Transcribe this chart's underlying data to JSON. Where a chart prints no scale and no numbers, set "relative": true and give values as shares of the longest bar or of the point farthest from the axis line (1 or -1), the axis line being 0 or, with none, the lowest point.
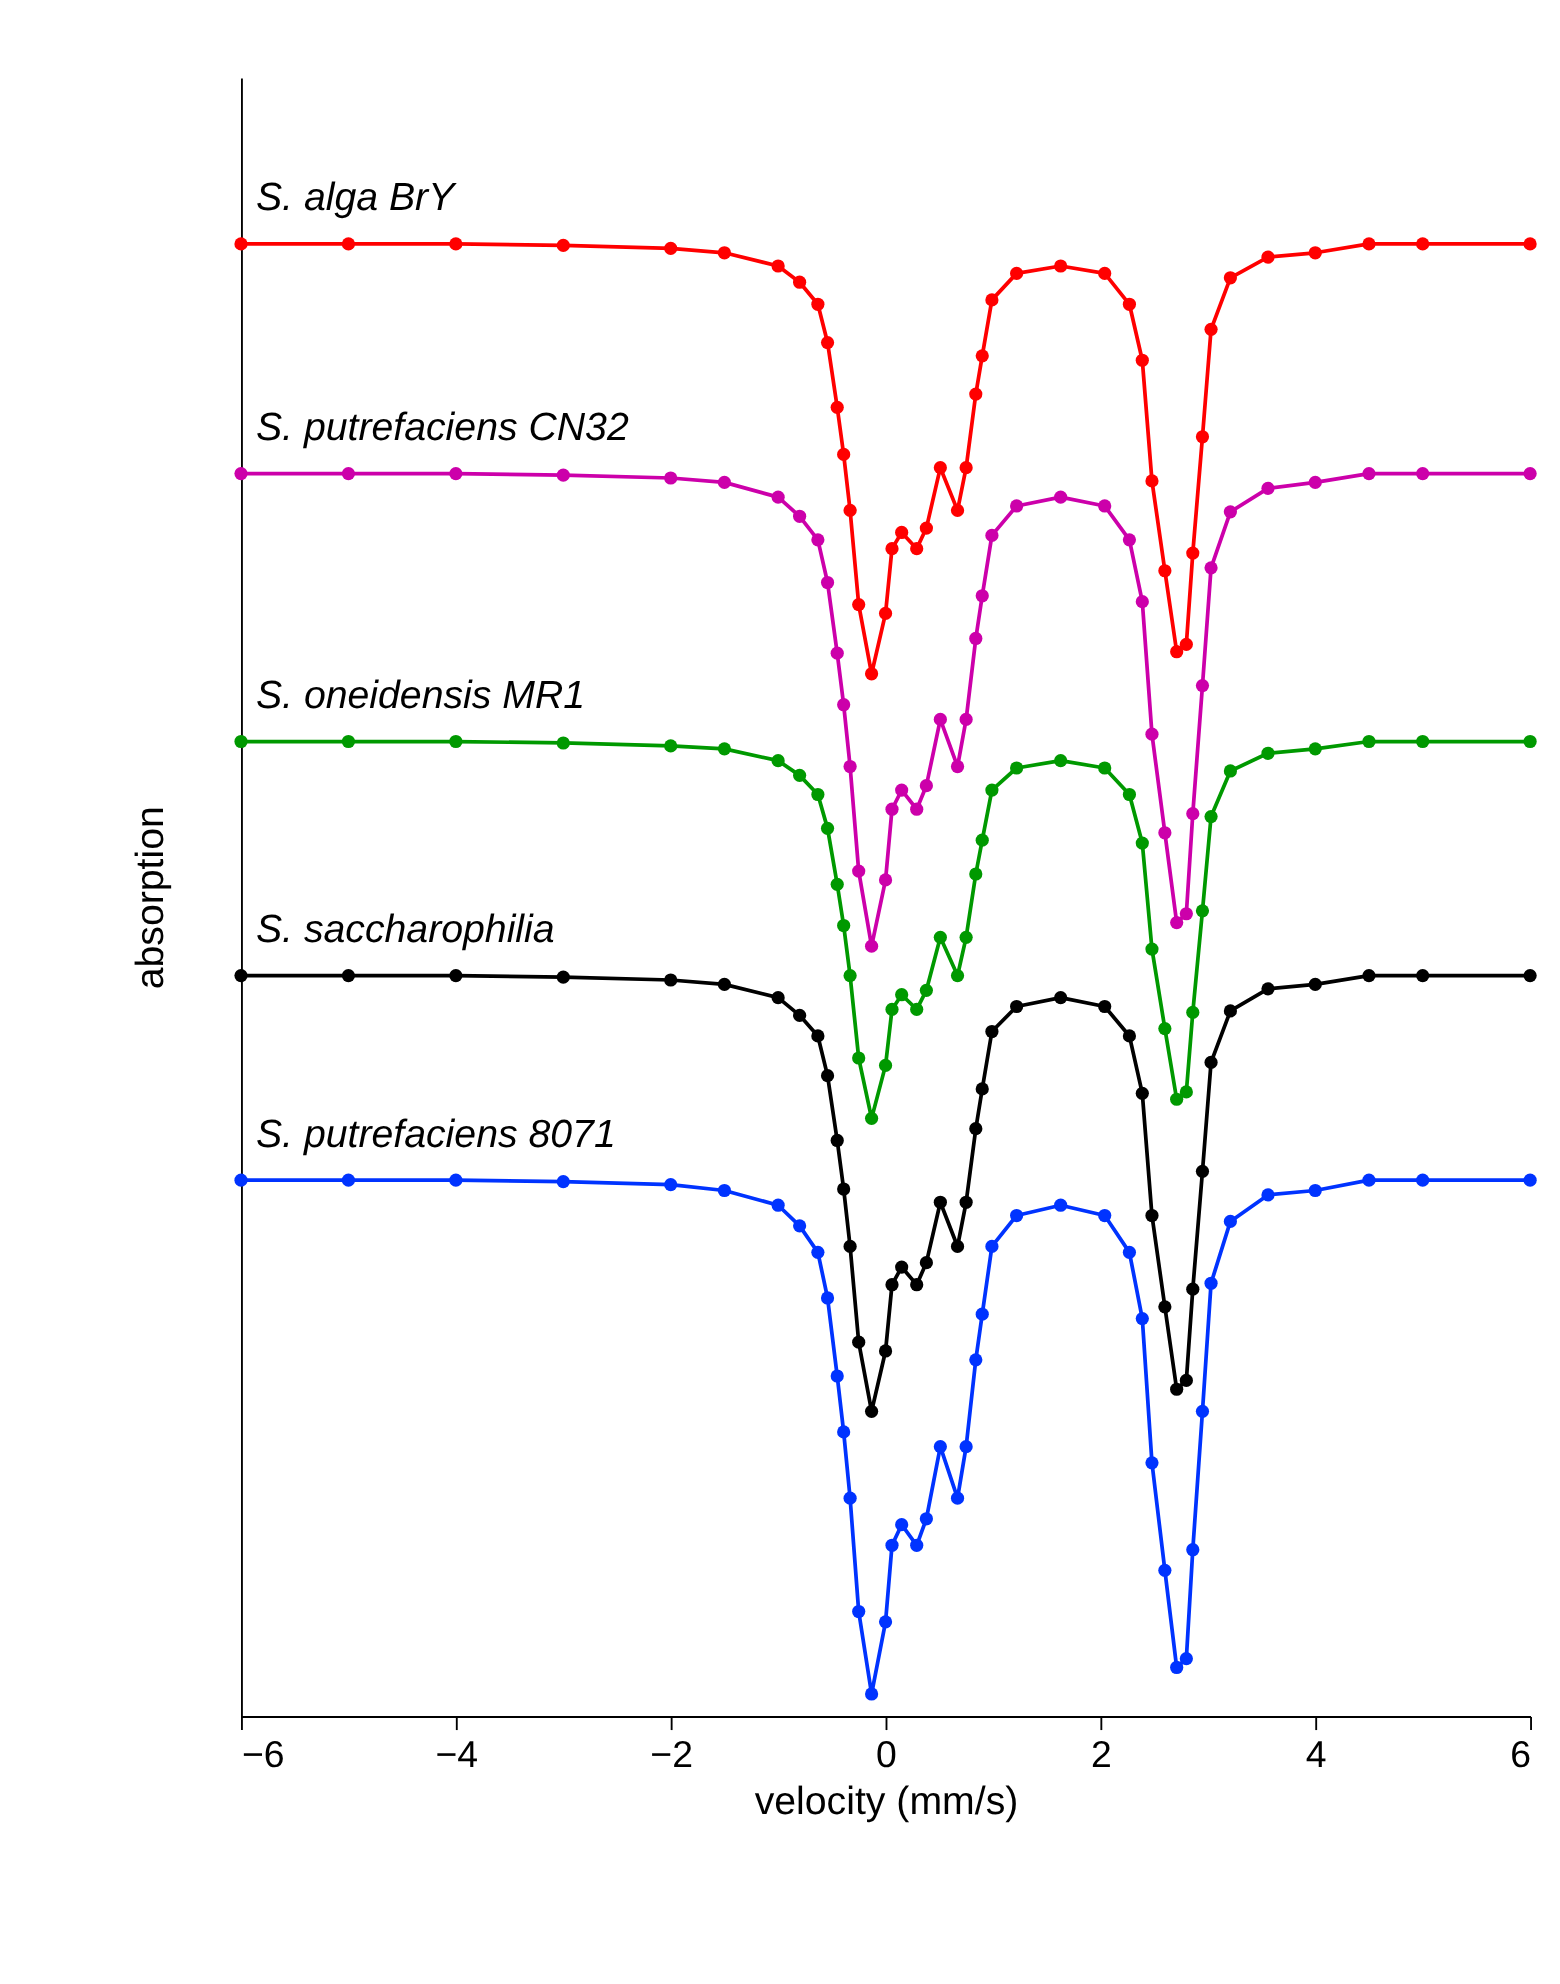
{
  "chart_data": {
    "type": "line",
    "relative": true,
    "xlabel": "velocity (mm/s)",
    "ylabel": "absorption",
    "xlim": [
      -6,
      6
    ],
    "xticks": [
      -6,
      -4,
      -2,
      0,
      2,
      4,
      6
    ],
    "grid": false,
    "legend": false,
    "marker": "circle",
    "line_style": "solid",
    "x": [
      -6,
      -5,
      -4,
      -3,
      -2,
      -1.5,
      -1,
      -0.8,
      -0.63,
      -0.54,
      -0.45,
      -0.39,
      -0.33,
      -0.25,
      -0.13,
      0,
      0.06,
      0.15,
      0.29,
      0.38,
      0.51,
      0.67,
      0.75,
      0.84,
      0.9,
      0.99,
      1.22,
      1.63,
      2.04,
      2.27,
      2.39,
      2.48,
      2.6,
      2.71,
      2.8,
      2.86,
      2.95,
      3.03,
      3.21,
      3.56,
      4,
      4.5,
      5,
      6
    ],
    "series": [
      {
        "name": "S. alga BrY",
        "color": "#ff0000",
        "values": [
          1.0,
          1.0,
          1.0,
          0.999,
          0.997,
          0.994,
          0.985,
          0.974,
          0.959,
          0.933,
          0.889,
          0.857,
          0.819,
          0.755,
          0.708,
          0.749,
          0.793,
          0.804,
          0.793,
          0.807,
          0.848,
          0.819,
          0.848,
          0.898,
          0.924,
          0.962,
          0.98,
          0.985,
          0.98,
          0.959,
          0.921,
          0.839,
          0.778,
          0.723,
          0.728,
          0.79,
          0.869,
          0.942,
          0.977,
          0.991,
          0.994,
          1.0,
          1.0,
          1.0
        ]
      },
      {
        "name": "S. putrefaciens CN32",
        "color": "#cc00aa",
        "values": [
          0.844,
          0.844,
          0.844,
          0.843,
          0.841,
          0.838,
          0.828,
          0.815,
          0.799,
          0.77,
          0.722,
          0.687,
          0.645,
          0.574,
          0.523,
          0.568,
          0.616,
          0.629,
          0.616,
          0.632,
          0.677,
          0.645,
          0.677,
          0.732,
          0.761,
          0.802,
          0.822,
          0.828,
          0.822,
          0.799,
          0.757,
          0.667,
          0.6,
          0.539,
          0.545,
          0.613,
          0.7,
          0.78,
          0.818,
          0.834,
          0.838,
          0.844,
          0.844,
          0.844
        ]
      },
      {
        "name": "S. oneidensis MR1",
        "color": "#009900",
        "values": [
          0.662,
          0.662,
          0.662,
          0.661,
          0.659,
          0.657,
          0.649,
          0.639,
          0.626,
          0.603,
          0.565,
          0.537,
          0.503,
          0.447,
          0.406,
          0.442,
          0.48,
          0.49,
          0.48,
          0.493,
          0.529,
          0.503,
          0.529,
          0.572,
          0.595,
          0.629,
          0.644,
          0.649,
          0.644,
          0.626,
          0.593,
          0.521,
          0.467,
          0.419,
          0.424,
          0.478,
          0.547,
          0.611,
          0.642,
          0.654,
          0.657,
          0.662,
          0.662,
          0.662
        ]
      },
      {
        "name": "S. saccharophilia",
        "color": "#000000",
        "values": [
          0.503,
          0.503,
          0.503,
          0.502,
          0.5,
          0.497,
          0.488,
          0.476,
          0.462,
          0.435,
          0.391,
          0.358,
          0.319,
          0.254,
          0.207,
          0.248,
          0.293,
          0.305,
          0.293,
          0.308,
          0.349,
          0.319,
          0.349,
          0.399,
          0.426,
          0.465,
          0.482,
          0.488,
          0.482,
          0.462,
          0.423,
          0.34,
          0.278,
          0.222,
          0.228,
          0.29,
          0.37,
          0.444,
          0.479,
          0.494,
          0.497,
          0.503,
          0.503,
          0.503
        ]
      },
      {
        "name": "S. putrefaciens 8071",
        "color": "#0033ff",
        "values": [
          0.364,
          0.364,
          0.364,
          0.363,
          0.361,
          0.357,
          0.347,
          0.333,
          0.315,
          0.284,
          0.231,
          0.193,
          0.148,
          0.071,
          0.015,
          0.064,
          0.116,
          0.13,
          0.116,
          0.134,
          0.183,
          0.148,
          0.183,
          0.242,
          0.273,
          0.319,
          0.34,
          0.347,
          0.34,
          0.315,
          0.27,
          0.172,
          0.099,
          0.033,
          0.039,
          0.113,
          0.207,
          0.294,
          0.336,
          0.354,
          0.357,
          0.364,
          0.364,
          0.364
        ]
      }
    ]
  }
}
